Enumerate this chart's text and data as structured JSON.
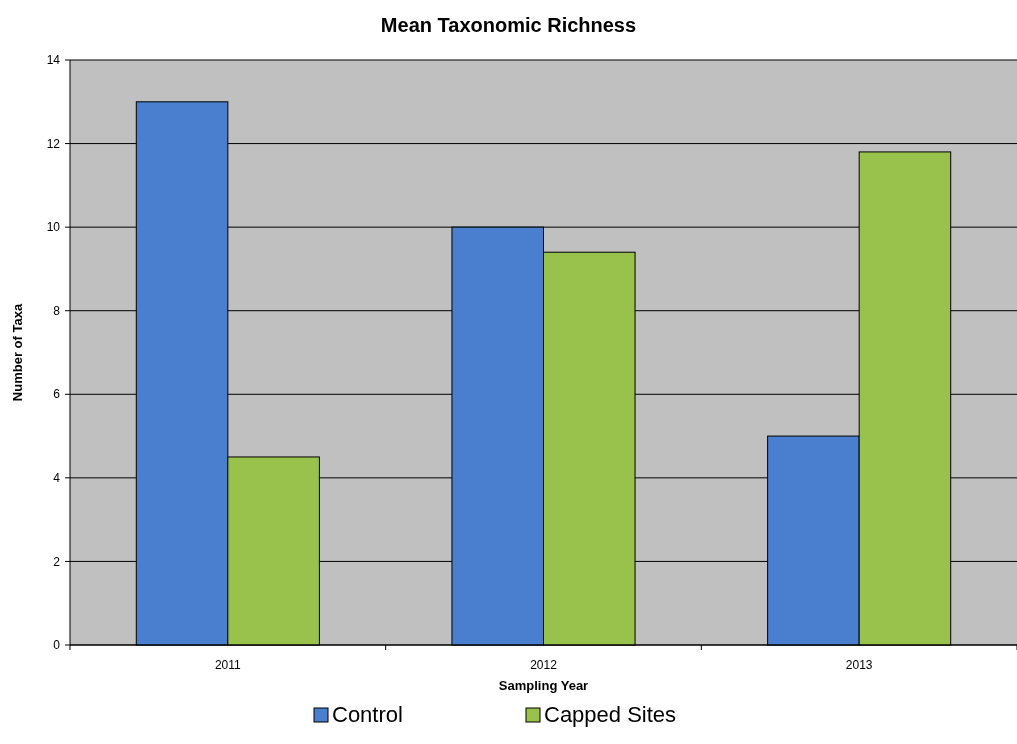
{
  "chart_data": {
    "type": "bar",
    "title": "Mean Taxonomic Richness",
    "xlabel": "Sampling Year",
    "ylabel": "Number of Taxa",
    "categories": [
      "2011",
      "2012",
      "2013"
    ],
    "series": [
      {
        "name": "Control",
        "color": "#4a7fd0",
        "values": [
          13,
          10,
          5
        ]
      },
      {
        "name": "Capped Sites",
        "color": "#99c24d",
        "values": [
          4.5,
          9.4,
          11.8
        ]
      }
    ],
    "ylim": [
      0,
      14
    ],
    "yticks": [
      0,
      2,
      4,
      6,
      8,
      10,
      12,
      14
    ],
    "grid": "y",
    "legend": "bottom"
  }
}
